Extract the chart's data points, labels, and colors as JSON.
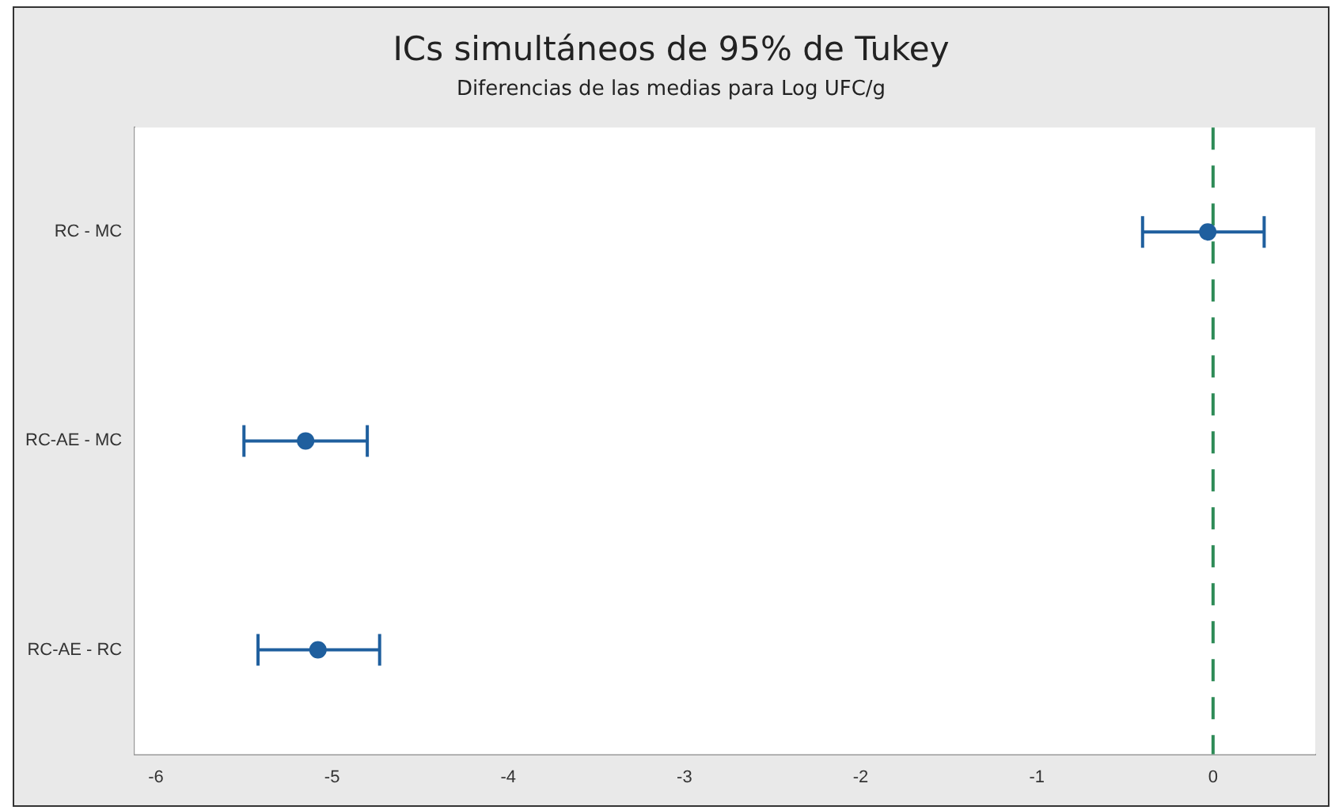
{
  "chart_data": {
    "type": "scatter",
    "orientation": "horizontal",
    "title": "ICs simultáneos de 95% de Tukey",
    "subtitle": "Diferencias de las medias para Log UFC/g",
    "categories": [
      "RC - MC",
      "RC-AE - MC",
      "RC-AE - RC"
    ],
    "series": [
      {
        "color": "#1f5f9e",
        "values": [
          -0.03,
          -5.15,
          -5.08
        ],
        "errors": [
          [
            -0.4,
            0.29
          ],
          [
            -5.5,
            -4.8
          ],
          [
            -5.42,
            -4.73
          ]
        ]
      }
    ],
    "xlim": [
      -6.12,
      0.58
    ],
    "xticks": [
      -6,
      -5,
      -4,
      -3,
      -2,
      -1,
      0
    ],
    "grid": false,
    "marker": "circle",
    "ref_lines": [
      {
        "axis": "x",
        "value": 0,
        "color": "#2e8b57",
        "line_style": "dashed"
      }
    ]
  }
}
